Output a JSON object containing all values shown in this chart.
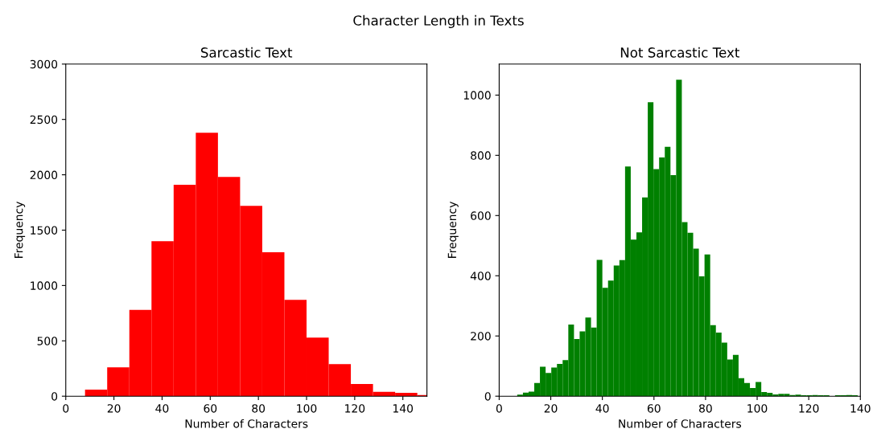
{
  "chart_data": [
    {
      "type": "histogram",
      "title": "Sarcastic Text",
      "xlabel": "Number of Characters",
      "ylabel": "Frequency",
      "annotations": [
        "Character Length in Texts"
      ],
      "color": "#ff0000",
      "bins": [
        8,
        17.2,
        26.4,
        35.6,
        44.8,
        54,
        63.2,
        72.4,
        81.6,
        90.8,
        100,
        109.2,
        118.4,
        127.6,
        136.8,
        146,
        155.2
      ],
      "values": [
        60,
        260,
        780,
        1400,
        1910,
        2380,
        1980,
        1720,
        1300,
        870,
        530,
        290,
        110,
        40,
        30,
        10
      ],
      "xlim": [
        0,
        150
      ],
      "xticks": [
        0,
        20,
        40,
        60,
        80,
        100,
        120,
        140
      ],
      "ylim": [
        0,
        3000
      ],
      "yticks": [
        0,
        500,
        1000,
        1500,
        2000,
        2500,
        3000
      ],
      "grid": false,
      "legend": false
    },
    {
      "type": "histogram",
      "title": "Not Sarcastic Text",
      "xlabel": "Number of Characters",
      "ylabel": "Frequency",
      "color": "#008000",
      "bins": [
        7,
        9.2,
        11.4,
        13.6,
        15.8,
        18,
        20.2,
        22.4,
        24.6,
        26.8,
        29,
        31.2,
        33.4,
        35.6,
        37.8,
        40,
        42.2,
        44.4,
        46.6,
        48.8,
        51,
        53.2,
        55.4,
        57.6,
        59.8,
        62,
        64.2,
        66.4,
        68.6,
        70.8,
        73,
        75.2,
        77.4,
        79.6,
        81.8,
        84,
        86.2,
        88.4,
        90.6,
        92.8,
        95,
        97.2,
        99.4,
        101.6,
        103.8,
        106,
        108.2,
        110.4,
        112.6,
        114.8,
        117,
        119.2,
        121.4,
        123.6,
        125.8,
        128,
        130.2,
        132.4,
        134.6,
        136.8,
        139
      ],
      "values": [
        5,
        12,
        15,
        44,
        98,
        77,
        95,
        107,
        120,
        238,
        190,
        215,
        261,
        228,
        453,
        360,
        384,
        434,
        452,
        763,
        520,
        544,
        660,
        976,
        754,
        793,
        828,
        734,
        1051,
        578,
        543,
        490,
        398,
        471,
        236,
        211,
        178,
        122,
        137,
        60,
        44,
        27,
        47,
        14,
        11,
        6,
        8,
        8,
        4,
        5,
        3,
        3,
        4,
        3,
        3,
        null,
        3,
        3,
        4,
        3
      ],
      "xlim": [
        0,
        140
      ],
      "xticks": [
        0,
        20,
        40,
        60,
        80,
        100,
        120,
        140
      ],
      "ylim": [
        0,
        1103
      ],
      "yticks": [
        0,
        200,
        400,
        600,
        800,
        1000
      ],
      "grid": false,
      "legend": false
    }
  ]
}
